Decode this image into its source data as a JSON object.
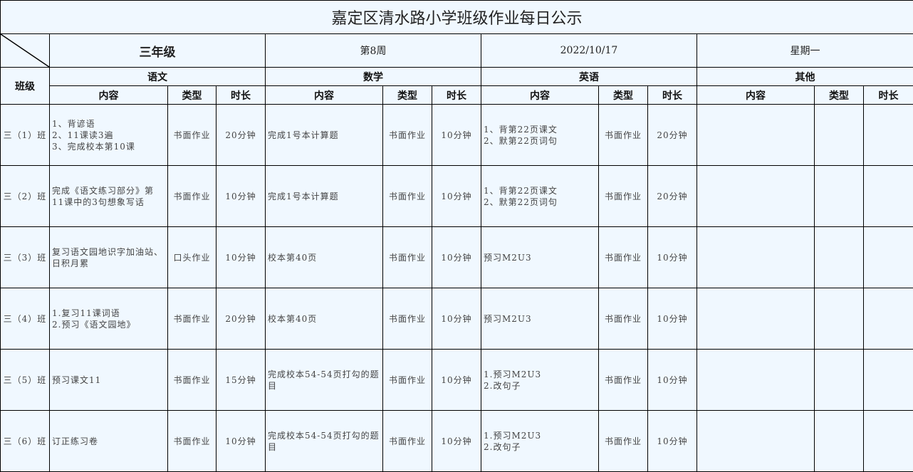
{
  "title": "嘉定区清水路小学班级作业每日公示",
  "header": {
    "grade": "三年级",
    "week": "第8周",
    "date": "2022/10/17",
    "weekday": "星期一",
    "class_label": "班级"
  },
  "subjects": [
    "语文",
    "数学",
    "英语",
    "其他"
  ],
  "subheaders": {
    "content": "内容",
    "type": "类型",
    "duration": "时长"
  },
  "rows": [
    {
      "class": "三（1）班",
      "chinese": {
        "content": "1、背谚语\n2、11课读3遍\n3、完成校本第10课",
        "type": "书面作业",
        "duration": "20分钟"
      },
      "math": {
        "content": "完成1号本计算题",
        "type": "书面作业",
        "duration": "10分钟"
      },
      "english": {
        "content": "1、背第22页课文\n2、默第22页词句",
        "type": "书面作业",
        "duration": "20分钟"
      }
    },
    {
      "class": "三（2）班",
      "chinese": {
        "content": "完成《语文练习部分》第11课中的3句想象写话",
        "type": "书面作业",
        "duration": "10分钟"
      },
      "math": {
        "content": "完成1号本计算题",
        "type": "书面作业",
        "duration": "10分钟"
      },
      "english": {
        "content": "1、背第22页课文\n2、默第22页词句",
        "type": "书面作业",
        "duration": "20分钟"
      }
    },
    {
      "class": "三（3）班",
      "chinese": {
        "content": "复习语文园地识字加油站、日积月累",
        "type": "口头作业",
        "duration": "10分钟"
      },
      "math": {
        "content": "校本第40页",
        "type": "书面作业",
        "duration": "10分钟"
      },
      "english": {
        "content": "预习M2U3",
        "type": "书面作业",
        "duration": "10分钟"
      }
    },
    {
      "class": "三（4）班",
      "chinese": {
        "content": "1.复习11课词语\n2.预习《语文园地》",
        "type": "书面作业",
        "duration": "20分钟"
      },
      "math": {
        "content": "校本第40页",
        "type": "书面作业",
        "duration": "10分钟"
      },
      "english": {
        "content": "预习M2U3",
        "type": "书面作业",
        "duration": "10分钟"
      }
    },
    {
      "class": "三（5）班",
      "chinese": {
        "content": "预习课文11",
        "type": "书面作业",
        "duration": "15分钟"
      },
      "math": {
        "content": "完成校本54-54页打勾的题目",
        "type": "书面作业",
        "duration": "10分钟"
      },
      "english": {
        "content": "1.预习M2U3\n2.改句子",
        "type": "书面作业",
        "duration": "10分钟"
      }
    },
    {
      "class": "三（6）班",
      "chinese": {
        "content": "订正练习卷",
        "type": "书面作业",
        "duration": "10分钟"
      },
      "math": {
        "content": "完成校本54-54页打勾的题目",
        "type": "书面作业",
        "duration": "10分钟"
      },
      "english": {
        "content": "1.预习M2U3\n2.改句子",
        "type": "书面作业",
        "duration": "10分钟"
      }
    }
  ]
}
